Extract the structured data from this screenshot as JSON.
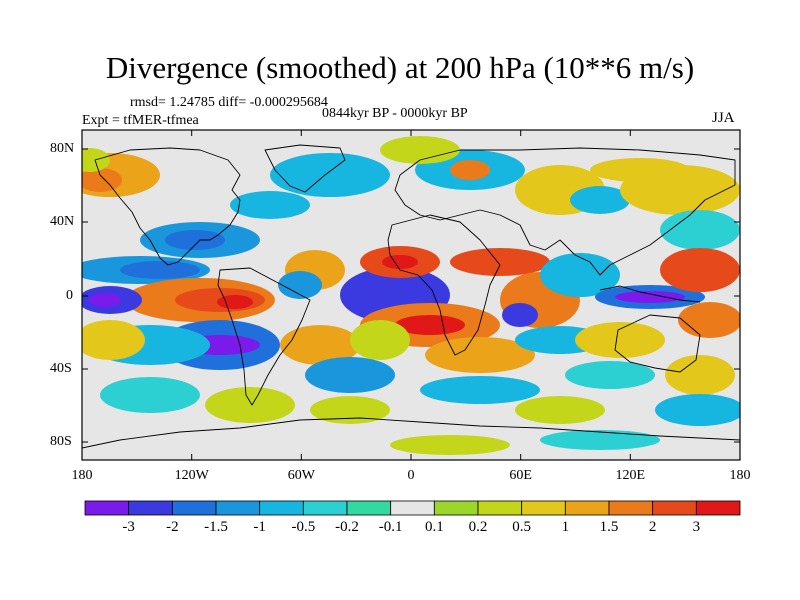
{
  "title": "Divergence (smoothed) at 200 hPa (10**6 m/s)",
  "stats": "rmsd= 1.24785 diff= -0.000295684",
  "period": "0844kyr BP - 0000kyr BP",
  "expt": "Expt = tfMER-tfmea",
  "season": "JJA",
  "map": {
    "lat_labels": [
      "80N",
      "40N",
      "0",
      "40S",
      "80S"
    ],
    "lon_labels": [
      "180",
      "120W",
      "60W",
      "0",
      "60E",
      "120E",
      "180"
    ],
    "fill_colors": {
      "neg3": "#7a1aeb",
      "neg2": "#3a3ae0",
      "neg15": "#1f70db",
      "neg1": "#1996dc",
      "neg05": "#17b6e0",
      "neg02": "#2ccfd2",
      "neg01": "#33d9a0",
      "zero": "#e6e6e6",
      "p01": "#9bd62a",
      "p02": "#c4d61a",
      "p05": "#e3c71a",
      "p1": "#eba41a",
      "p15": "#ea7a1a",
      "p2": "#e64a1a",
      "p3": "#e01818"
    }
  },
  "colorbar": {
    "labels": [
      "-3",
      "-2",
      "-1.5",
      "-1",
      "-0.5",
      "-0.2",
      "-0.1",
      "0.1",
      "0.2",
      "0.5",
      "1",
      "1.5",
      "2",
      "3"
    ],
    "colors": [
      "#7a1aeb",
      "#3a3ae0",
      "#1f70db",
      "#1996dc",
      "#17b6e0",
      "#2ccfd2",
      "#33d9a0",
      "#e6e6e6",
      "#9bd62a",
      "#c4d61a",
      "#e3c71a",
      "#eba41a",
      "#ea7a1a",
      "#e64a1a",
      "#e01818"
    ]
  }
}
